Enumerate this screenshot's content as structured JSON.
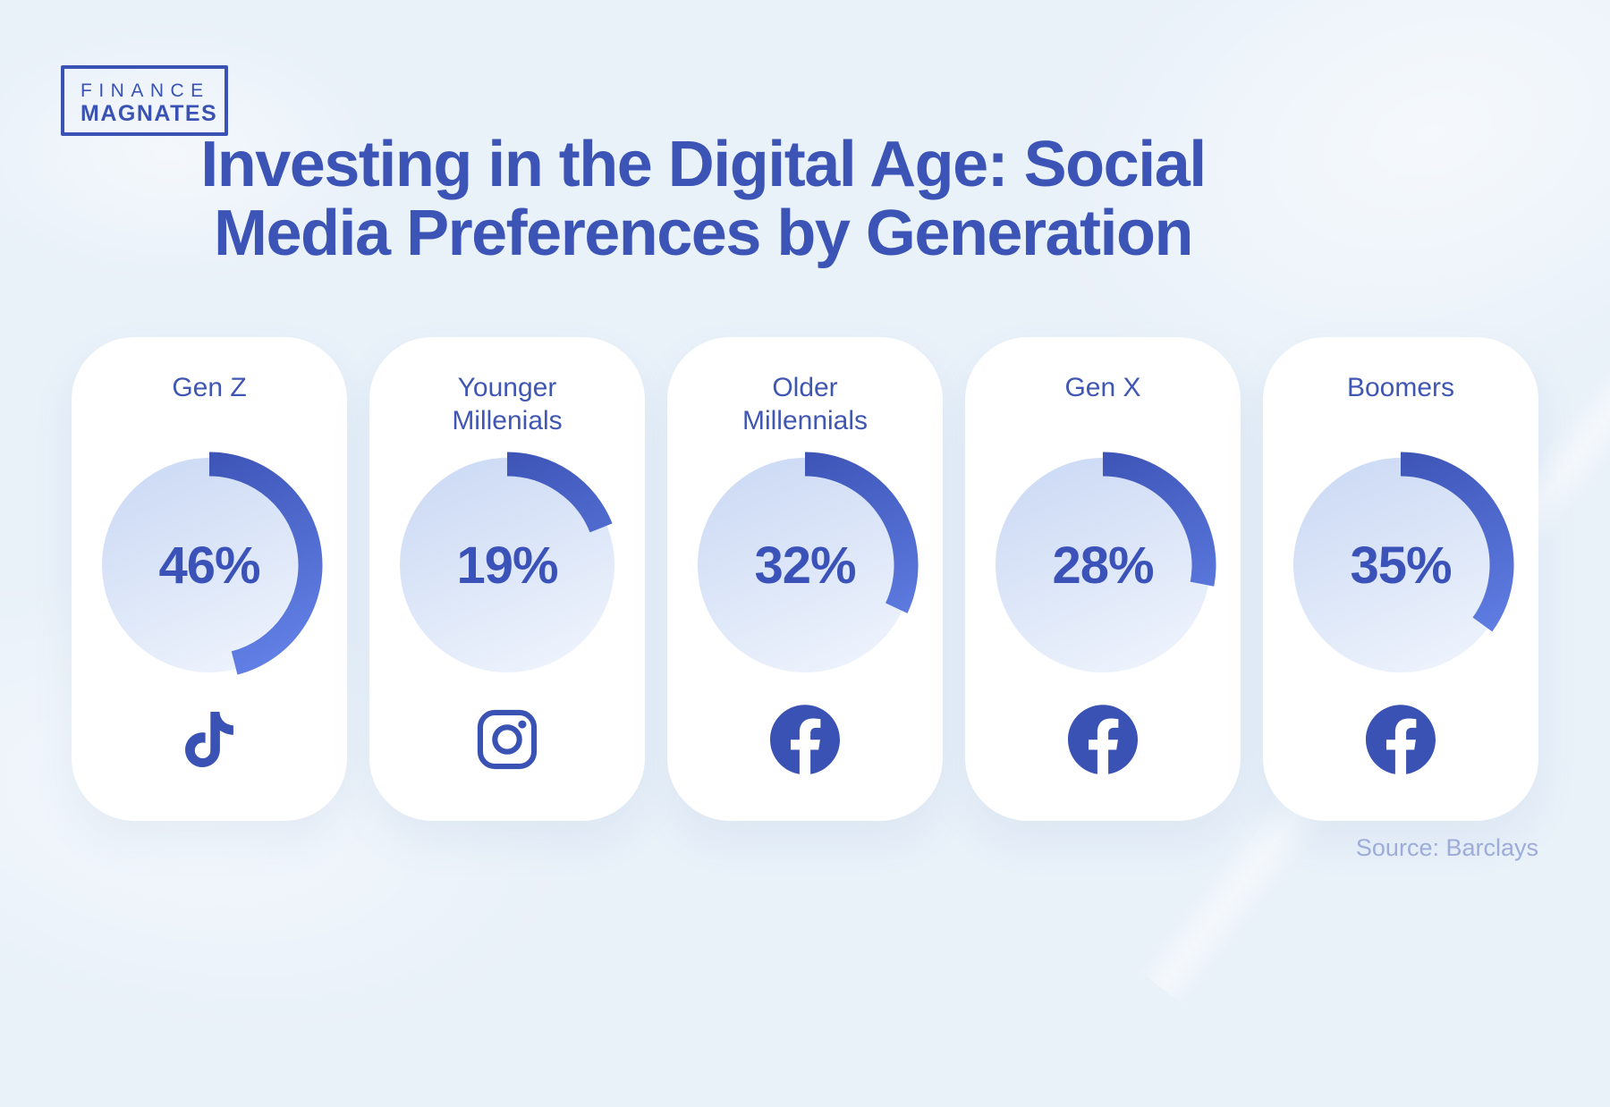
{
  "logo": {
    "line1": "FINANCE",
    "line2": "MAGNATES"
  },
  "title": {
    "line1": "Investing in the Digital Age: Social",
    "line2": "Media Preferences by Generation"
  },
  "source": {
    "label": "Source: Barclays"
  },
  "colors": {
    "background": "#e9f1f9",
    "brand_blue": "#3a52b4",
    "title_blue": "#3b54b6",
    "label_blue": "#3f56b3",
    "percent_blue": "#3b53b8",
    "arc_gradient_start": "#3a50b2",
    "arc_gradient_end": "#6584ea",
    "circle_gradient_top": "#cbd9f4",
    "circle_gradient_bottom": "#ecf2fc",
    "card_background": "#ffffff",
    "source_text": "#9dacd9"
  },
  "chart_data": {
    "type": "pie",
    "subtype": "donut-progress-grid",
    "title": "Investing in the Digital Age: Social Media Preferences by Generation",
    "categories": [
      "Gen Z",
      "Younger Millenials",
      "Older Millennials",
      "Gen X",
      "Boomers"
    ],
    "values": [
      46,
      19,
      32,
      28,
      35
    ],
    "unit": "%",
    "platforms": [
      "TikTok",
      "Instagram",
      "Facebook",
      "Facebook",
      "Facebook"
    ],
    "arc_start": "12 o'clock, clockwise",
    "source": "Barclays"
  },
  "cards": [
    {
      "label_line1": "Gen Z",
      "label_line2": "",
      "percent": 46,
      "percent_label": "46%",
      "platform": "TikTok"
    },
    {
      "label_line1": "Younger",
      "label_line2": "Millenials",
      "percent": 19,
      "percent_label": "19%",
      "platform": "Instagram"
    },
    {
      "label_line1": "Older",
      "label_line2": "Millennials",
      "percent": 32,
      "percent_label": "32%",
      "platform": "Facebook"
    },
    {
      "label_line1": "Gen X",
      "label_line2": "",
      "percent": 28,
      "percent_label": "28%",
      "platform": "Facebook"
    },
    {
      "label_line1": "Boomers",
      "label_line2": "",
      "percent": 35,
      "percent_label": "35%",
      "platform": "Facebook"
    }
  ]
}
